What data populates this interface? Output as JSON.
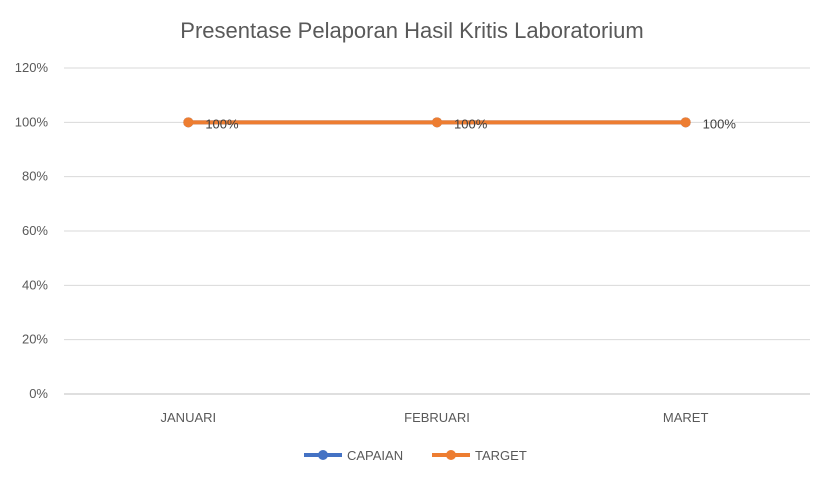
{
  "chart_data": {
    "type": "line",
    "title": "Presentase Pelaporan Hasil Kritis Laboratorium",
    "xlabel": "",
    "ylabel": "",
    "categories": [
      "JANUARI",
      "FEBRUARI",
      "MARET"
    ],
    "y_ticks": [
      "0%",
      "20%",
      "40%",
      "60%",
      "80%",
      "100%",
      "120%"
    ],
    "ylim": [
      0,
      120
    ],
    "grid": true,
    "legend_position": "bottom",
    "series": [
      {
        "name": "CAPAIAN",
        "color": "#4472C4",
        "values": [
          100,
          100,
          100
        ],
        "labels": [
          "",
          "",
          ""
        ]
      },
      {
        "name": "TARGET",
        "color": "#ED7D31",
        "values": [
          100,
          100,
          100
        ],
        "labels": [
          "100%",
          "100%",
          "100%"
        ]
      }
    ]
  }
}
